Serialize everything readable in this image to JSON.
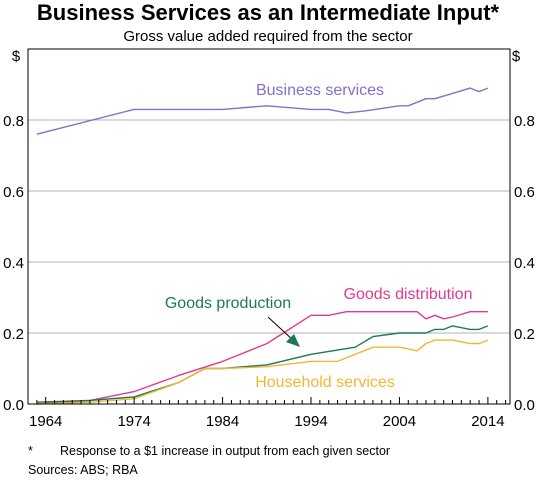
{
  "chart_data": {
    "type": "line",
    "title": "Business Services as an Intermediate Input*",
    "subtitle": "Gross value added required from the sector",
    "y_unit_left": "$",
    "y_unit_right": "$",
    "xlim": [
      1962,
      2016.5
    ],
    "ylim": [
      0,
      1.0
    ],
    "x_ticks": [
      1964,
      1974,
      1984,
      1994,
      2004,
      2014
    ],
    "y_ticks": [
      0.0,
      0.2,
      0.4,
      0.6,
      0.8
    ],
    "y_tick_labels": [
      "0.0",
      "0.2",
      "0.4",
      "0.6",
      "0.8"
    ],
    "grid": "horizontal",
    "series": [
      {
        "name": "Business services",
        "color": "#8470c8",
        "points": [
          [
            1963,
            0.76
          ],
          [
            1974,
            0.83
          ],
          [
            1984,
            0.83
          ],
          [
            1989,
            0.84
          ],
          [
            1994,
            0.83
          ],
          [
            1996,
            0.83
          ],
          [
            1998,
            0.82
          ],
          [
            2000,
            0.825
          ],
          [
            2004,
            0.84
          ],
          [
            2005,
            0.84
          ],
          [
            2007,
            0.86
          ],
          [
            2008,
            0.86
          ],
          [
            2010,
            0.875
          ],
          [
            2012,
            0.89
          ],
          [
            2013,
            0.88
          ],
          [
            2014,
            0.89
          ]
        ]
      },
      {
        "name": "Goods distribution",
        "color": "#e33b8c",
        "points": [
          [
            1963,
            0.0
          ],
          [
            1969,
            0.01
          ],
          [
            1974,
            0.035
          ],
          [
            1979,
            0.08
          ],
          [
            1984,
            0.12
          ],
          [
            1989,
            0.17
          ],
          [
            1994,
            0.25
          ],
          [
            1996,
            0.25
          ],
          [
            1998,
            0.26
          ],
          [
            2003,
            0.26
          ],
          [
            2006,
            0.26
          ],
          [
            2007,
            0.24
          ],
          [
            2008,
            0.25
          ],
          [
            2009,
            0.24
          ],
          [
            2010,
            0.245
          ],
          [
            2012,
            0.26
          ],
          [
            2014,
            0.26
          ]
        ]
      },
      {
        "name": "Goods production",
        "color": "#1c7a52",
        "points": [
          [
            1963,
            0.005
          ],
          [
            1969,
            0.01
          ],
          [
            1974,
            0.02
          ],
          [
            1979,
            0.06
          ],
          [
            1982,
            0.1
          ],
          [
            1984,
            0.1
          ],
          [
            1989,
            0.11
          ],
          [
            1994,
            0.14
          ],
          [
            1999,
            0.16
          ],
          [
            2001,
            0.19
          ],
          [
            2004,
            0.2
          ],
          [
            2006,
            0.2
          ],
          [
            2007,
            0.2
          ],
          [
            2008,
            0.21
          ],
          [
            2009,
            0.21
          ],
          [
            2010,
            0.22
          ],
          [
            2012,
            0.21
          ],
          [
            2013,
            0.21
          ],
          [
            2014,
            0.22
          ]
        ]
      },
      {
        "name": "Household services",
        "color": "#f2b634",
        "points": [
          [
            1963,
            0.0
          ],
          [
            1969,
            0.005
          ],
          [
            1974,
            0.015
          ],
          [
            1979,
            0.06
          ],
          [
            1982,
            0.1
          ],
          [
            1984,
            0.1
          ],
          [
            1989,
            0.105
          ],
          [
            1994,
            0.12
          ],
          [
            1997,
            0.12
          ],
          [
            1999,
            0.14
          ],
          [
            2001,
            0.16
          ],
          [
            2004,
            0.16
          ],
          [
            2006,
            0.15
          ],
          [
            2007,
            0.17
          ],
          [
            2008,
            0.18
          ],
          [
            2010,
            0.18
          ],
          [
            2012,
            0.17
          ],
          [
            2013,
            0.17
          ],
          [
            2014,
            0.18
          ]
        ]
      }
    ],
    "footnote_mark": "*",
    "footnote": "Response to a $1 increase in output from each given sector",
    "sources": "Sources:   ABS; RBA"
  }
}
